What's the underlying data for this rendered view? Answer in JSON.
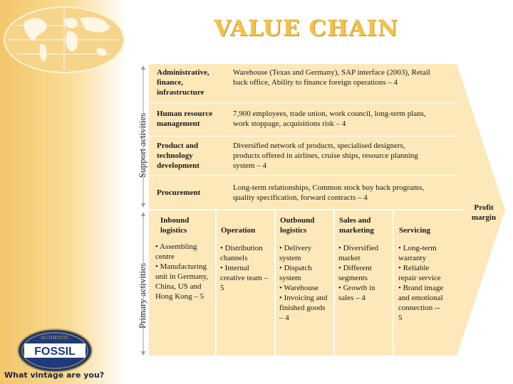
{
  "title": "VALUE CHAIN",
  "support_label": "Support activities",
  "primary_label": "Primary activities",
  "margin_label": "Profit margin",
  "support_rows": [
    {
      "name": "Administrative, finance, infrastructure",
      "desc": "Warehouse (Texas and Germany), SAP interface (2003), Retail back office, Ability to finance foreign operations – 4"
    },
    {
      "name": "Human resource management",
      "desc": "7,900 employees, trade union, work council, long-term plans, work stoppage,  acquisitions risk – 4"
    },
    {
      "name": "Product and technology development",
      "desc": "Diversified network of products, specialised designers, products offered in airlines, cruise ships, resource planning system – 4"
    },
    {
      "name": "Procurement",
      "desc": "Long-term relationships, Common stock buy back programs, quality specification,  forward contracts – 4"
    }
  ],
  "primary_columns": [
    {
      "header": "Inbound logistics",
      "body": "• Assembling centre\n•  Manufacturing unit in Germany, China, US and Hong Kong – 5"
    },
    {
      "header": "Operation",
      "body": "• Distribution channels\n• Internal creative team – 5"
    },
    {
      "header": "Outbound logistics",
      "body": "• Delivery system\n• Dispatch system\n• Warehouse\n• Invoicing and finished goods – 4"
    },
    {
      "header": "Sales and marketing",
      "body": "• Diversified market\n• Different segments\n• Growth in sales – 4"
    },
    {
      "header": "Servicing",
      "body": "• Long-term warranty\n• Reliable repair service\n• Brand image and emotional connection -- 5"
    }
  ],
  "brand": {
    "badge_top": "AUTHENTIC",
    "name": "FOSSIL",
    "tagline": "What vintage are you?"
  },
  "colors": {
    "title": "#f2c24d",
    "panel": "#fde8b9",
    "band": "#f3c66a"
  }
}
